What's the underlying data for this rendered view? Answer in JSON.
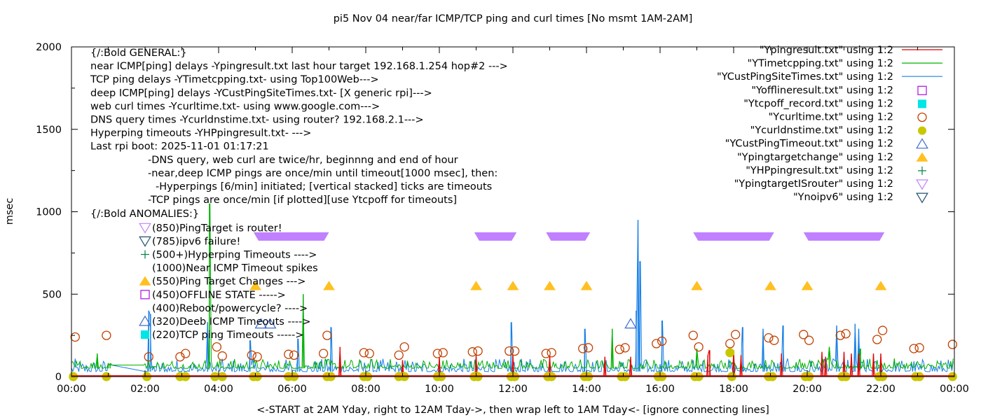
{
  "chart_data": {
    "type": "line",
    "title": "pi5 Nov 04  near/far ICMP/TCP ping and curl times [No msmt 1AM-2AM]",
    "xlabel": "<-START at 2AM Yday, right to 12AM Tday->, then wrap left to 1AM Tday<- [ignore connecting lines]",
    "ylabel": "msec",
    "xlim_hours": [
      0,
      24
    ],
    "ylim": [
      0,
      2000
    ],
    "x_ticks": [
      "00:00",
      "02:00",
      "04:00",
      "06:00",
      "08:00",
      "10:00",
      "12:00",
      "14:00",
      "16:00",
      "18:00",
      "20:00",
      "22:00",
      "00:00"
    ],
    "y_ticks": [
      "0",
      "500",
      "1000",
      "1500",
      "2000"
    ],
    "legend_placement": "top-right",
    "legend": [
      {
        "label": "\"Ypingresult.txt\" using 1:2",
        "style": "line",
        "color": "#e00000"
      },
      {
        "label": "\"YTimetcpping.txt\" using 1:2",
        "style": "line",
        "color": "#00b000"
      },
      {
        "label": "\"YCustPingSiteTimes.txt\" using 1:2",
        "style": "line",
        "color": "#1a80e6"
      },
      {
        "label": "\"Yofflineresult.txt\" using 1:2",
        "style": "open-square",
        "color": "#b020e0"
      },
      {
        "label": "\"Ytcpoff_record.txt\" using 1:2",
        "style": "filled-square",
        "color": "#00e5e5"
      },
      {
        "label": "\"Ycurltime.txt\" using 1:2",
        "style": "open-circle",
        "color": "#c04000"
      },
      {
        "label": "\"Ycurldnstime.txt\" using 1:2",
        "style": "filled-circle",
        "color": "#c8c800"
      },
      {
        "label": "\"YCustPingTimeout.txt\" using 1:2",
        "style": "open-triangle-up",
        "color": "#3a6bd0"
      },
      {
        "label": "\"Ypingtargetchange\" using 1:2",
        "style": "filled-triangle-up",
        "color": "#ffc020"
      },
      {
        "label": "\"YHPpingresult.txt\" using 1:2",
        "style": "plus",
        "color": "#008040"
      },
      {
        "label": "\"YpingtargetISrouter\" using 1:2",
        "style": "open-triangle-down",
        "color": "#c080ff"
      },
      {
        "label": "\"Ynoipv6\" using 1:2",
        "style": "open-triangle-down",
        "color": "#205070"
      }
    ],
    "annotations": {
      "general_header": "{/:Bold GENERAL:}",
      "general_lines": [
        "near ICMP[ping] delays -Ypingresult.txt last hour target 192.168.1.254 hop#2 --->",
        "TCP ping delays -YTimetcpping.txt- using Top100Web--->",
        "deep ICMP[ping] delays -YCustPingSiteTimes.txt- [X generic rpi]--->",
        "web curl times -Ycurltime.txt- using www.google.com--->",
        "DNS query times -Ycurldnstime.txt- using router? 192.168.2.1--->",
        "Hyperping timeouts -YHPpingresult.txt- --->",
        "Last rpi boot: 2025-11-01 01:17:21"
      ],
      "notes": [
        "-DNS query, web curl are twice/hr, beginnng and end of hour",
        "-near,deep ICMP pings are once/min until timeout[1000 msec], then:",
        "  -Hyperpings [6/min] initiated; [vertical stacked] ticks are timeouts",
        "-TCP pings are once/min [if plotted][use Ytcpoff for timeouts]"
      ],
      "anomalies_header": "{/:Bold ANOMALIES:}",
      "anomalies": [
        {
          "text": "(850)PingTarget is router!",
          "marker": "open-triangle-down",
          "color": "#c080ff"
        },
        {
          "text": "(785)ipv6 failure!",
          "marker": "open-triangle-down",
          "color": "#205070"
        },
        {
          "text": "(500+)Hyperping Timeouts ---->",
          "marker": "plus",
          "color": "#008040"
        },
        {
          "text": "(1000)Near ICMP Timeout spikes",
          "marker": "none",
          "color": ""
        },
        {
          "text": "(550)Ping Target Changes --->",
          "marker": "filled-triangle-up",
          "color": "#ffc020"
        },
        {
          "text": "(450)OFFLINE STATE ----->",
          "marker": "open-square",
          "color": "#b020e0"
        },
        {
          "text": "(400)Reboot/powercycle? ---->",
          "marker": "none",
          "color": ""
        },
        {
          "text": "(320)Deeb ICMP Timeouts ---->",
          "marker": "open-triangle-up",
          "color": "#3a6bd0"
        },
        {
          "text": "(220)TCP ping Timeouts ----->",
          "marker": "filled-square",
          "color": "#00e5e5"
        }
      ]
    },
    "series": [
      {
        "name": "YpingtargetISrouter",
        "kind": "segments",
        "y": 850,
        "ranges_hours": [
          [
            4.95,
            7.0
          ],
          [
            10.95,
            12.1
          ],
          [
            12.9,
            14.1
          ],
          [
            16.9,
            19.1
          ],
          [
            19.9,
            22.1
          ]
        ]
      },
      {
        "name": "Ypingtargetchange",
        "kind": "points",
        "y": 550,
        "x_hours": [
          5.0,
          7.0,
          11.0,
          12.0,
          13.0,
          14.0,
          17.0,
          19.0,
          20.0,
          22.0
        ]
      },
      {
        "name": "YCustPingTimeout",
        "kind": "points",
        "points": [
          [
            5.15,
            320
          ],
          [
            5.4,
            320
          ],
          [
            15.2,
            320
          ]
        ]
      },
      {
        "name": "Ycurltime",
        "kind": "points",
        "points": [
          [
            0.1,
            240
          ],
          [
            0.95,
            250
          ],
          [
            2.1,
            120
          ],
          [
            2.95,
            120
          ],
          [
            3.1,
            140
          ],
          [
            3.95,
            180
          ],
          [
            4.1,
            125
          ],
          [
            4.9,
            130
          ],
          [
            5.05,
            120
          ],
          [
            5.9,
            135
          ],
          [
            6.05,
            130
          ],
          [
            6.95,
            250
          ],
          [
            6.85,
            140
          ],
          [
            7.95,
            145
          ],
          [
            8.1,
            140
          ],
          [
            8.9,
            130
          ],
          [
            9.05,
            180
          ],
          [
            9.95,
            140
          ],
          [
            10.1,
            145
          ],
          [
            10.9,
            150
          ],
          [
            11.05,
            155
          ],
          [
            11.9,
            155
          ],
          [
            12.05,
            155
          ],
          [
            12.9,
            140
          ],
          [
            13.05,
            145
          ],
          [
            13.9,
            170
          ],
          [
            14.05,
            175
          ],
          [
            14.9,
            165
          ],
          [
            15.05,
            175
          ],
          [
            15.9,
            200
          ],
          [
            16.05,
            215
          ],
          [
            16.9,
            250
          ],
          [
            17.05,
            180
          ],
          [
            17.9,
            200
          ],
          [
            18.05,
            255
          ],
          [
            18.95,
            235
          ],
          [
            19.1,
            220
          ],
          [
            19.9,
            255
          ],
          [
            20.05,
            220
          ],
          [
            20.9,
            250
          ],
          [
            21.05,
            260
          ],
          [
            21.9,
            225
          ],
          [
            22.05,
            280
          ],
          [
            22.9,
            170
          ],
          [
            23.05,
            175
          ],
          [
            23.95,
            195
          ]
        ]
      },
      {
        "name": "Ycurldnstime",
        "kind": "points",
        "points": [
          [
            0.05,
            0
          ],
          [
            0.95,
            0
          ],
          [
            2.05,
            0
          ],
          [
            2.95,
            0
          ],
          [
            3.1,
            0
          ],
          [
            3.9,
            0
          ],
          [
            4.1,
            0
          ],
          [
            4.95,
            0
          ],
          [
            5.05,
            0
          ],
          [
            5.9,
            0
          ],
          [
            6.05,
            0
          ],
          [
            6.95,
            0
          ],
          [
            7.05,
            0
          ],
          [
            7.95,
            0
          ],
          [
            8.05,
            0
          ],
          [
            8.9,
            0
          ],
          [
            9.05,
            0
          ],
          [
            9.95,
            0
          ],
          [
            10.05,
            0
          ],
          [
            10.95,
            0
          ],
          [
            11.05,
            0
          ],
          [
            11.95,
            0
          ],
          [
            12.05,
            0
          ],
          [
            12.95,
            0
          ],
          [
            13.05,
            0
          ],
          [
            13.95,
            0
          ],
          [
            14.05,
            0
          ],
          [
            14.95,
            0
          ],
          [
            15.05,
            0
          ],
          [
            15.95,
            0
          ],
          [
            16.05,
            0
          ],
          [
            16.95,
            0
          ],
          [
            17.05,
            0
          ],
          [
            17.9,
            145
          ],
          [
            17.95,
            0
          ],
          [
            18.95,
            0
          ],
          [
            19.05,
            0
          ],
          [
            19.95,
            0
          ],
          [
            20.05,
            0
          ],
          [
            20.95,
            0
          ],
          [
            21.05,
            0
          ],
          [
            21.95,
            0
          ],
          [
            22.05,
            0
          ],
          [
            22.95,
            0
          ],
          [
            23.05,
            0
          ],
          [
            23.95,
            0
          ]
        ]
      },
      {
        "name": "YCustPingSiteTimes",
        "kind": "line",
        "baseline_msec": 30,
        "noise_msec": 80,
        "spikes": [
          [
            2.1,
            400
          ],
          [
            2.15,
            380
          ],
          [
            3.7,
            330
          ],
          [
            4.85,
            220
          ],
          [
            6.15,
            230
          ],
          [
            7.05,
            300
          ],
          [
            11.95,
            330
          ],
          [
            13.95,
            290
          ],
          [
            15.35,
            400
          ],
          [
            15.4,
            950
          ],
          [
            15.45,
            700
          ],
          [
            16.05,
            340
          ],
          [
            18.25,
            300
          ],
          [
            18.8,
            290
          ],
          [
            19.35,
            310
          ],
          [
            20.8,
            310
          ],
          [
            21.3,
            320
          ],
          [
            21.4,
            290
          ]
        ]
      },
      {
        "name": "YTimetcpping",
        "kind": "line",
        "baseline_msec": 50,
        "noise_msec": 60,
        "spikes": [
          [
            0.7,
            140
          ],
          [
            1.0,
            80
          ],
          [
            1.05,
            80
          ],
          [
            3.75,
            1050
          ],
          [
            6.3,
            500
          ],
          [
            14.7,
            290
          ],
          [
            17.0,
            170
          ],
          [
            20.6,
            180
          ],
          [
            21.45,
            170
          ]
        ]
      },
      {
        "name": "Ypingresult",
        "kind": "line",
        "baseline_msec": 5,
        "noise_msec": 0,
        "spikes": [
          [
            7.3,
            180
          ],
          [
            9.0,
            100
          ],
          [
            10.0,
            120
          ],
          [
            11.0,
            130
          ],
          [
            12.0,
            130
          ],
          [
            13.0,
            130
          ],
          [
            14.5,
            120
          ],
          [
            15.2,
            120
          ],
          [
            17.3,
            130
          ],
          [
            17.35,
            160
          ],
          [
            18.0,
            160
          ],
          [
            18.2,
            130
          ],
          [
            19.3,
            140
          ],
          [
            20.4,
            150
          ],
          [
            20.5,
            120
          ],
          [
            21.0,
            150
          ],
          [
            21.2,
            140
          ],
          [
            21.4,
            140
          ],
          [
            21.8,
            140
          ],
          [
            22.0,
            140
          ]
        ]
      }
    ]
  }
}
